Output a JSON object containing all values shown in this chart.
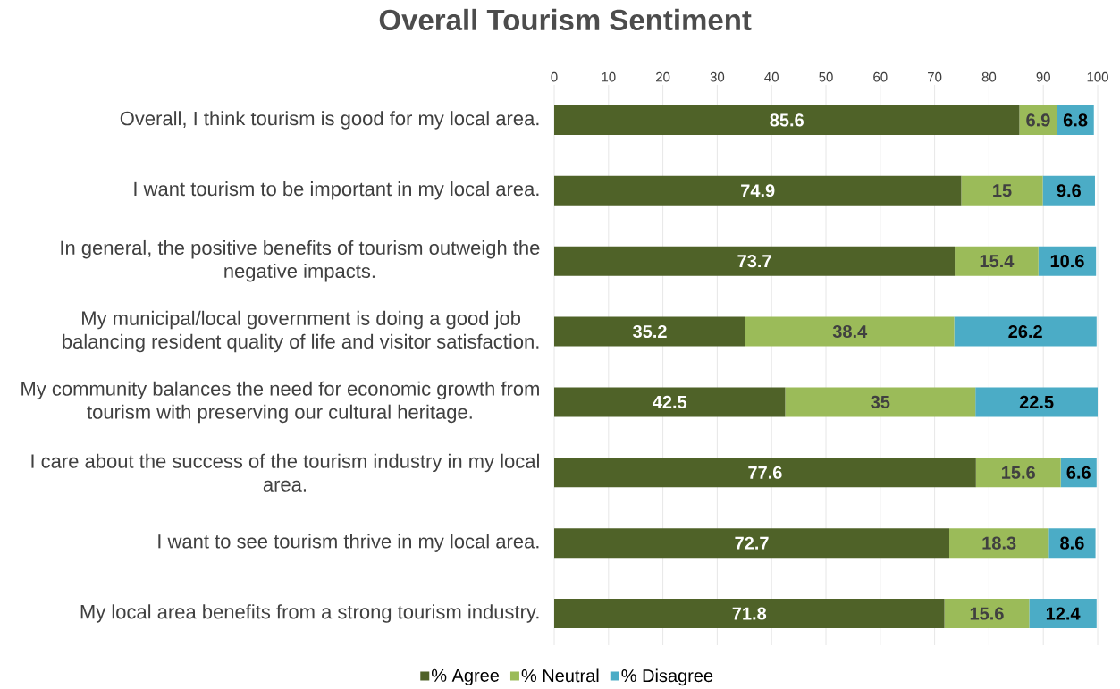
{
  "chart_data": {
    "type": "bar",
    "orientation": "horizontal",
    "stacked": true,
    "title": "Overall Tourism Sentiment",
    "categories": [
      "Overall, I think tourism is good for my local area.",
      "I want tourism to be important in my local area.",
      "In general, the positive benefits of tourism outweigh the negative impacts.",
      "My municipal/local government is doing a good job balancing resident quality of life and visitor satisfaction.",
      "My community balances the need for economic growth from tourism with preserving our cultural heritage.",
      "I care about the success of the tourism industry in my local area.",
      "I want to see tourism thrive in my local area.",
      "My local area benefits from a strong tourism industry."
    ],
    "series": [
      {
        "name": "% Agree",
        "color": "#4f6228",
        "values": [
          85.6,
          74.9,
          73.7,
          35.2,
          42.5,
          77.6,
          72.7,
          71.8
        ]
      },
      {
        "name": "% Neutral",
        "color": "#9bbb59",
        "values": [
          6.9,
          15,
          15.4,
          38.4,
          35,
          15.6,
          18.3,
          15.6
        ]
      },
      {
        "name": "% Disagree",
        "color": "#4bacc6",
        "values": [
          6.8,
          9.6,
          10.6,
          26.2,
          22.5,
          6.6,
          8.6,
          12.4
        ]
      }
    ],
    "xlim": [
      0,
      100
    ],
    "xticks": [
      0,
      10,
      20,
      30,
      40,
      50,
      60,
      70,
      80,
      90,
      100
    ],
    "grid": "x",
    "legend": "bottom",
    "data_labels": true
  }
}
